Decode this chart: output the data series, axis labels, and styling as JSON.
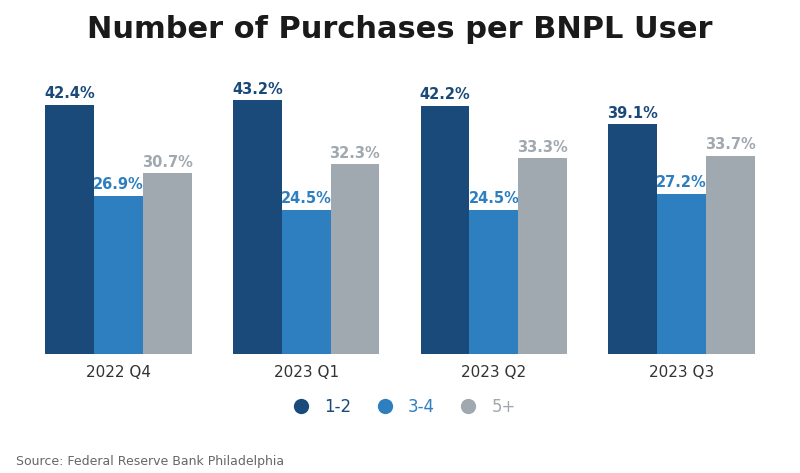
{
  "title": "Number of Purchases per BNPL User",
  "categories": [
    "2022 Q4",
    "2023 Q1",
    "2023 Q2",
    "2023 Q3"
  ],
  "series": [
    {
      "label": "1-2",
      "values": [
        42.4,
        43.2,
        42.2,
        39.1
      ],
      "color": "#1a4a7a",
      "label_color": "#1a4a7a"
    },
    {
      "label": "3-4",
      "values": [
        26.9,
        24.5,
        24.5,
        27.2
      ],
      "color": "#2e7fc0",
      "label_color": "#2e7fc0"
    },
    {
      "label": "5+",
      "values": [
        30.7,
        32.3,
        33.3,
        33.7
      ],
      "color": "#a0a8b0",
      "label_color": "#a0a8b0"
    }
  ],
  "ylim": [
    0,
    50
  ],
  "bar_width": 0.26,
  "source": "Source: Federal Reserve Bank Philadelphia",
  "background_color": "#ffffff",
  "title_fontsize": 22,
  "label_fontsize": 10.5,
  "tick_fontsize": 11,
  "legend_fontsize": 12,
  "source_fontsize": 9
}
